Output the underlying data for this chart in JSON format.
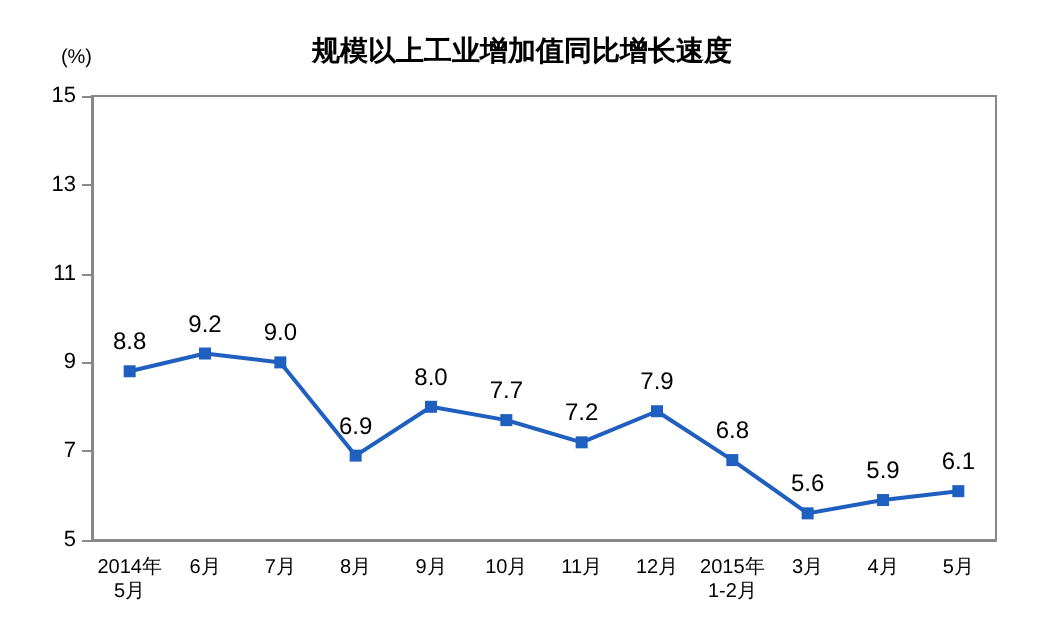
{
  "chart_data": {
    "type": "line",
    "title": "规模以上工业增加值同比增长速度",
    "ylabel": "(%)",
    "categories": [
      "2014年\n5月",
      "6月",
      "7月",
      "8月",
      "9月",
      "10月",
      "11月",
      "12月",
      "2015年\n1-2月",
      "3月",
      "4月",
      "5月"
    ],
    "series": [
      {
        "color": "#1f5fbf",
        "values": [
          8.8,
          9.2,
          9.0,
          6.9,
          8.0,
          7.7,
          7.2,
          7.9,
          6.8,
          5.6,
          5.9,
          6.1
        ],
        "value_labels": [
          "8.8",
          "9.2",
          "9.0",
          "6.9",
          "8.0",
          "7.7",
          "7.2",
          "7.9",
          "6.8",
          "5.6",
          "5.9",
          "6.1"
        ]
      }
    ],
    "ylim": [
      5,
      15
    ],
    "yticks": [
      5,
      7,
      9,
      11,
      13,
      15
    ],
    "grid": false,
    "marker": "square",
    "line_style": "solid"
  }
}
